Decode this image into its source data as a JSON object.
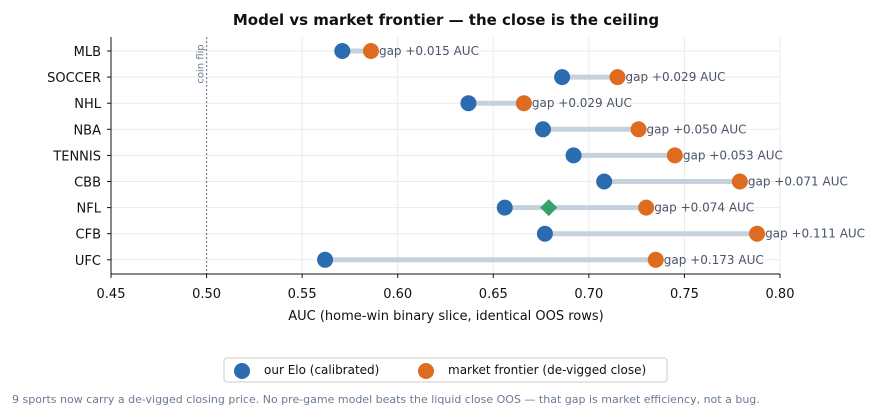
{
  "chart_data": {
    "type": "dumbbell",
    "title": "Model vs market frontier — the close is the ceiling",
    "xlabel": "AUC (home-win binary slice, identical OOS rows)",
    "xlim": [
      0.45,
      0.8
    ],
    "xticks": [
      0.45,
      0.5,
      0.55,
      0.6,
      0.65,
      0.7,
      0.75,
      0.8
    ],
    "xtick_labels": [
      "0.45",
      "0.50",
      "0.55",
      "0.60",
      "0.65",
      "0.70",
      "0.75",
      "0.80"
    ],
    "grid": true,
    "categories": [
      "MLB",
      "SOCCER",
      "NHL",
      "NBA",
      "TENNIS",
      "CBB",
      "NFL",
      "CFB",
      "UFC"
    ],
    "series": [
      {
        "name": "our Elo (calibrated)",
        "color": "#2b6cb0",
        "values": [
          0.571,
          0.686,
          0.637,
          0.676,
          0.692,
          0.708,
          0.656,
          0.677,
          0.562
        ]
      },
      {
        "name": "market frontier (de-vigged close)",
        "color": "#dd6b20",
        "values": [
          0.586,
          0.715,
          0.666,
          0.726,
          0.745,
          0.779,
          0.73,
          0.788,
          0.735
        ]
      }
    ],
    "extra_markers": [
      {
        "category": "NFL",
        "value": 0.679,
        "color": "#38a169",
        "shape": "diamond"
      }
    ],
    "gap_labels": [
      "gap +0.015 AUC",
      "gap +0.029 AUC",
      "gap +0.029 AUC",
      "gap +0.050 AUC",
      "gap +0.053 AUC",
      "gap +0.071 AUC",
      "gap +0.074 AUC",
      "gap +0.111 AUC",
      "gap +0.173 AUC"
    ],
    "reference_line": {
      "value": 0.5,
      "label": "coin flip"
    },
    "legend_position": "bottom-center"
  },
  "footnote": "9 sports now carry a de-vigged closing price. No pre-game model beats the liquid close OOS — that gap is market efficiency, not a bug.",
  "colors": {
    "connector": "#c5d1dc",
    "grid": "#ebebeb",
    "reference": "#7d8aa5"
  }
}
